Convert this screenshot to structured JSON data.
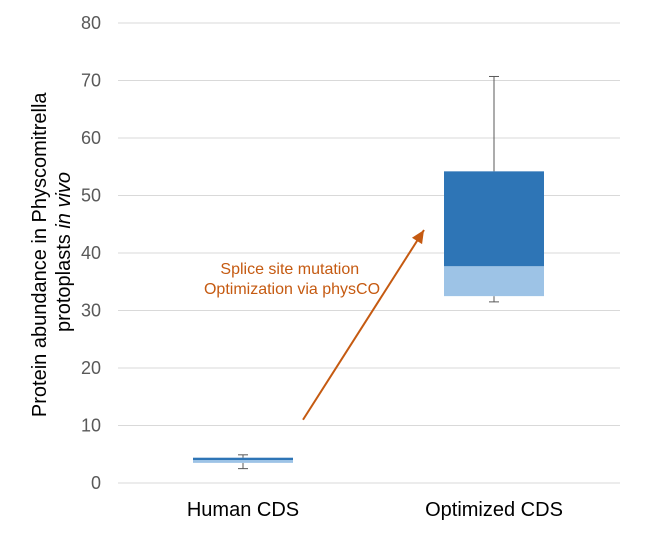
{
  "chart_data": {
    "type": "box",
    "categories": [
      "Human CDS",
      "Optimized CDS"
    ],
    "boxes": [
      {
        "category": "Human CDS",
        "min": 2.5,
        "q1": 3.5,
        "median": 4.0,
        "q3": 4.4,
        "max": 4.9
      },
      {
        "category": "Optimized CDS",
        "min": 31.5,
        "q1": 32.5,
        "median": 37.7,
        "q3": 54.2,
        "max": 70.7
      }
    ],
    "ylabel_line1": "Protein abundance in Physcomitrella",
    "ylabel_line2_prefix": "protoplasts ",
    "ylabel_line2_italic": "in vivo",
    "xlabel": "",
    "ylim": [
      0,
      80
    ],
    "yticks": [
      "0",
      "10",
      "20",
      "30",
      "40",
      "50",
      "60",
      "70",
      "80"
    ],
    "grid": true,
    "annotation": {
      "lines": [
        "Splice site mutation",
        "Optimization via physCO"
      ],
      "arrow_from": {
        "category": "Human CDS",
        "y": 11
      },
      "arrow_to": {
        "category": "Optimized CDS",
        "y": 44
      }
    },
    "colors": {
      "upper_box": "#2e75b6",
      "lower_box": "#9dc3e6",
      "whisker": "#595959",
      "annotation": "#c55a11",
      "grid": "#d9d9d9"
    }
  }
}
